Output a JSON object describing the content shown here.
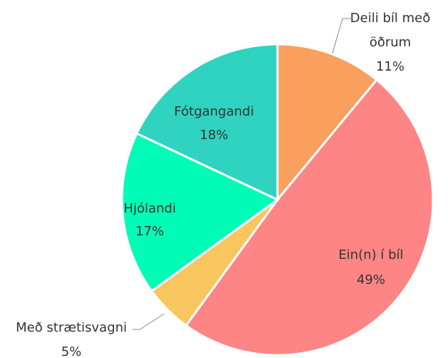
{
  "chart_data": {
    "type": "pie",
    "categories": [
      "Deili bíl með öðrum",
      "Ein(n) í bíl",
      "Með strætisvagni",
      "Hjólandi",
      "Fótgangandi"
    ],
    "values": [
      11,
      49,
      5,
      17,
      18
    ],
    "value_labels": [
      "11%",
      "49%",
      "5%",
      "17%",
      "18%"
    ],
    "colors": [
      "#f9a05e",
      "#fd8585",
      "#f8c65e",
      "#00fcb6",
      "#2fd3c0"
    ]
  }
}
